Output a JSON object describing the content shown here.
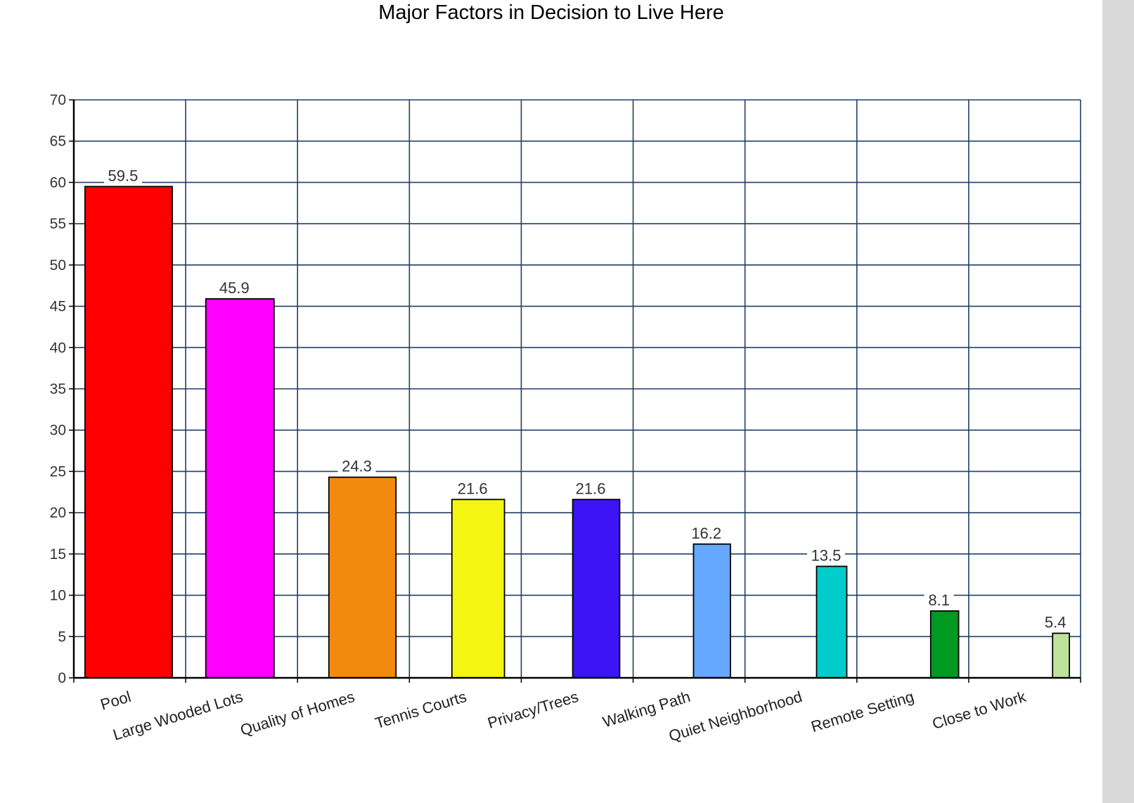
{
  "chart_data": {
    "type": "bar",
    "title": "Major Factors in Decision to Live Here",
    "xlabel": "",
    "ylabel": "",
    "ylim": [
      0,
      70
    ],
    "ytick_step": 5,
    "grid": true,
    "legend": "none",
    "categories": [
      "Pool",
      "Large Wooded Lots",
      "Quality of Homes",
      "Tennis Courts",
      "Privacy/Trees",
      "Walking Path",
      "Quiet Neighborhood",
      "Remote Setting",
      "Close to Work"
    ],
    "values": [
      59.5,
      45.9,
      24.3,
      21.6,
      21.6,
      16.2,
      13.5,
      8.1,
      5.4
    ],
    "data_labels": [
      "59.5",
      "45.9",
      "24.3",
      "21.6",
      "21.6",
      "16.2",
      "13.5",
      "8.1",
      "5.4"
    ],
    "colors": [
      "#ff0000",
      "#ff00ff",
      "#f28a0f",
      "#f5f514",
      "#3c14f5",
      "#64a8ff",
      "#00cccc",
      "#009922",
      "#bde39a"
    ],
    "grid_color": "#1f3f66"
  }
}
